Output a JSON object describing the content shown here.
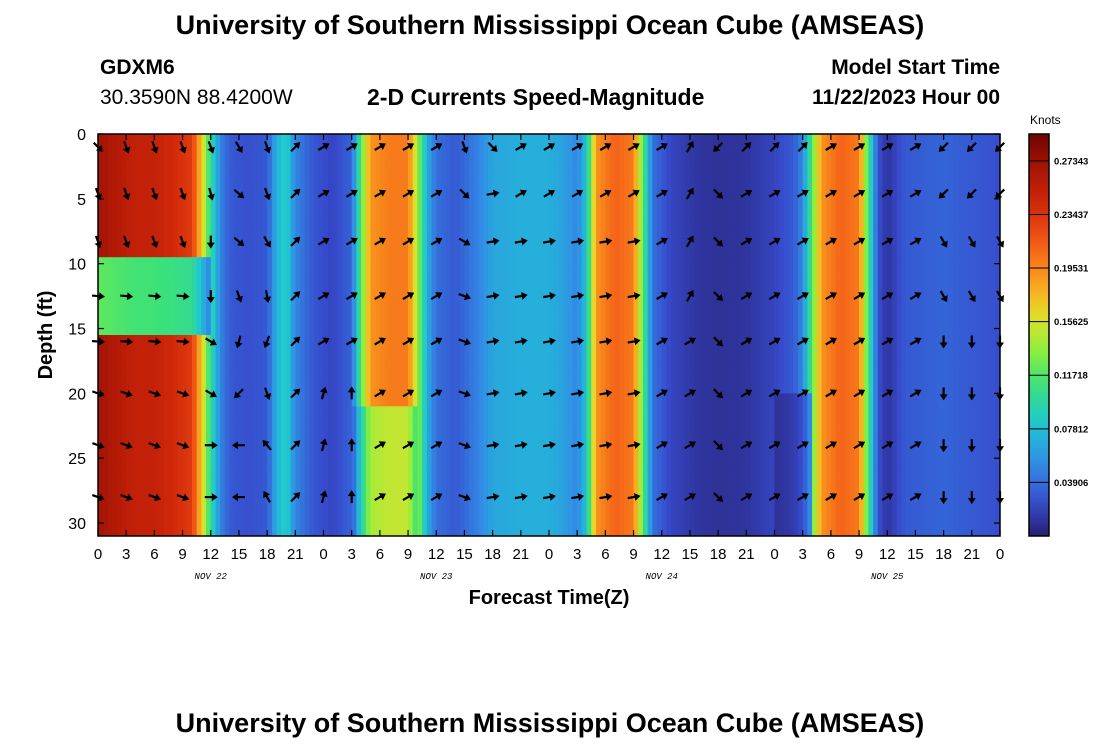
{
  "header": {
    "title": "University of Southern Mississippi Ocean Cube (AMSEAS)",
    "station": "GDXM6",
    "coords": "30.3590N  88.4200W",
    "subtitle": "2-D Currents Speed-Magnitude",
    "model_start_label": "Model Start Time",
    "model_start_value": "11/22/2023 Hour 00"
  },
  "footer": {
    "title": "University of Southern Mississippi Ocean Cube (AMSEAS)"
  },
  "chart_data": {
    "type": "heatmap",
    "xlabel": "Forecast Time(Z)",
    "ylabel": "Depth (ft)",
    "xlim": [
      0,
      96
    ],
    "ylim": [
      0,
      31
    ],
    "x_ticks": [
      0,
      3,
      6,
      9,
      12,
      15,
      18,
      21,
      24,
      27,
      30,
      33,
      36,
      39,
      42,
      45,
      48,
      51,
      54,
      57,
      60,
      63,
      66,
      69,
      72,
      75,
      78,
      81,
      84,
      87,
      90,
      93,
      96
    ],
    "x_tick_labels": [
      "0",
      "3",
      "6",
      "9",
      "12",
      "15",
      "18",
      "21",
      "0",
      "3",
      "6",
      "9",
      "12",
      "15",
      "18",
      "21",
      "0",
      "3",
      "6",
      "9",
      "12",
      "15",
      "18",
      "21",
      "0",
      "3",
      "6",
      "9",
      "12",
      "15",
      "18",
      "21",
      "0"
    ],
    "y_ticks": [
      0,
      5,
      10,
      15,
      20,
      25,
      30
    ],
    "y_tick_labels": [
      "0",
      "5",
      "10",
      "15",
      "20",
      "25",
      "30"
    ],
    "day_labels": [
      {
        "label": "NOV 22",
        "hour": 12
      },
      {
        "label": "NOV 23",
        "hour": 36
      },
      {
        "label": "NOV 24",
        "hour": 60
      },
      {
        "label": "NOV 25",
        "hour": 84
      }
    ],
    "colorbar": {
      "title": "Knots",
      "min": 0.0,
      "max": 0.293,
      "ticks": [
        0.27343,
        0.23437,
        0.19531,
        0.15625,
        0.11718,
        0.07812,
        0.03906
      ],
      "tick_labels": [
        "0.27343",
        "0.23437",
        "0.19531",
        "0.15625",
        "0.11718",
        "0.07812",
        "0.03906"
      ]
    },
    "depths": [
      1.0,
      4.6,
      8.3,
      12.5,
      16.0,
      20.0,
      24.0,
      28.0
    ],
    "speed_by_hour": [
      {
        "h": 0,
        "v": 0.27
      },
      {
        "h": 2,
        "v": 0.26
      },
      {
        "h": 4,
        "v": 0.25
      },
      {
        "h": 6,
        "v": 0.25
      },
      {
        "h": 8,
        "v": 0.24
      },
      {
        "h": 10,
        "v": 0.23
      },
      {
        "h": 11,
        "v": 0.17
      },
      {
        "h": 12,
        "v": 0.1
      },
      {
        "h": 13,
        "v": 0.05
      },
      {
        "h": 14,
        "v": 0.03
      },
      {
        "h": 16,
        "v": 0.025
      },
      {
        "h": 18,
        "v": 0.03
      },
      {
        "h": 19,
        "v": 0.07
      },
      {
        "h": 20,
        "v": 0.09
      },
      {
        "h": 21,
        "v": 0.05
      },
      {
        "h": 23,
        "v": 0.028
      },
      {
        "h": 25,
        "v": 0.02
      },
      {
        "h": 27,
        "v": 0.035
      },
      {
        "h": 28,
        "v": 0.12
      },
      {
        "h": 29,
        "v": 0.19
      },
      {
        "h": 31,
        "v": 0.2
      },
      {
        "h": 33,
        "v": 0.2
      },
      {
        "h": 34,
        "v": 0.14
      },
      {
        "h": 35,
        "v": 0.07
      },
      {
        "h": 36,
        "v": 0.04
      },
      {
        "h": 38,
        "v": 0.03
      },
      {
        "h": 40,
        "v": 0.045
      },
      {
        "h": 42,
        "v": 0.065
      },
      {
        "h": 45,
        "v": 0.07
      },
      {
        "h": 48,
        "v": 0.07
      },
      {
        "h": 50,
        "v": 0.06
      },
      {
        "h": 51,
        "v": 0.05
      },
      {
        "h": 52,
        "v": 0.08
      },
      {
        "h": 53,
        "v": 0.19
      },
      {
        "h": 55,
        "v": 0.21
      },
      {
        "h": 57,
        "v": 0.2
      },
      {
        "h": 58,
        "v": 0.12
      },
      {
        "h": 59,
        "v": 0.04
      },
      {
        "h": 61,
        "v": 0.02
      },
      {
        "h": 64,
        "v": 0.012
      },
      {
        "h": 66,
        "v": 0.01
      },
      {
        "h": 69,
        "v": 0.012
      },
      {
        "h": 72,
        "v": 0.02
      },
      {
        "h": 74,
        "v": 0.03
      },
      {
        "h": 75,
        "v": 0.05
      },
      {
        "h": 76,
        "v": 0.12
      },
      {
        "h": 77,
        "v": 0.19
      },
      {
        "h": 79,
        "v": 0.21
      },
      {
        "h": 81,
        "v": 0.2
      },
      {
        "h": 82,
        "v": 0.11
      },
      {
        "h": 83,
        "v": 0.025
      },
      {
        "h": 84,
        "v": 0.012
      },
      {
        "h": 86,
        "v": 0.03
      },
      {
        "h": 90,
        "v": 0.035
      },
      {
        "h": 93,
        "v": 0.03
      },
      {
        "h": 96,
        "v": 0.025
      }
    ],
    "vectors": [
      {
        "hour": 0,
        "directions_deg": [
          135,
          160,
          160,
          95,
          95,
          110,
          110,
          110
        ]
      },
      {
        "hour": 3,
        "directions_deg": [
          160,
          160,
          160,
          95,
          95,
          110,
          110,
          110
        ]
      },
      {
        "hour": 6,
        "directions_deg": [
          160,
          160,
          160,
          95,
          95,
          110,
          110,
          110
        ]
      },
      {
        "hour": 9,
        "directions_deg": [
          160,
          160,
          160,
          95,
          95,
          110,
          110,
          110
        ]
      },
      {
        "hour": 12,
        "directions_deg": [
          160,
          165,
          180,
          180,
          120,
          120,
          90,
          90
        ]
      },
      {
        "hour": 15,
        "directions_deg": [
          150,
          130,
          130,
          160,
          195,
          225,
          270,
          270
        ]
      },
      {
        "hour": 18,
        "directions_deg": [
          160,
          160,
          150,
          170,
          200,
          160,
          320,
          330
        ]
      },
      {
        "hour": 21,
        "directions_deg": [
          45,
          45,
          45,
          45,
          45,
          45,
          45,
          45
        ]
      },
      {
        "hour": 24,
        "directions_deg": [
          60,
          60,
          60,
          60,
          60,
          15,
          15,
          15
        ]
      },
      {
        "hour": 27,
        "directions_deg": [
          60,
          60,
          60,
          60,
          60,
          0,
          0,
          0
        ]
      },
      {
        "hour": 30,
        "directions_deg": [
          60,
          60,
          60,
          60,
          60,
          60,
          60,
          60
        ]
      },
      {
        "hour": 33,
        "directions_deg": [
          60,
          60,
          60,
          60,
          60,
          60,
          60,
          60
        ]
      },
      {
        "hour": 36,
        "directions_deg": [
          60,
          60,
          60,
          60,
          60,
          60,
          60,
          60
        ]
      },
      {
        "hour": 39,
        "directions_deg": [
          160,
          135,
          120,
          110,
          110,
          110,
          110,
          110
        ]
      },
      {
        "hour": 42,
        "directions_deg": [
          135,
          80,
          80,
          80,
          80,
          80,
          80,
          80
        ]
      },
      {
        "hour": 45,
        "directions_deg": [
          60,
          60,
          80,
          80,
          80,
          80,
          80,
          80
        ]
      },
      {
        "hour": 48,
        "directions_deg": [
          60,
          60,
          80,
          80,
          80,
          80,
          80,
          80
        ]
      },
      {
        "hour": 51,
        "directions_deg": [
          60,
          60,
          80,
          80,
          80,
          80,
          80,
          80
        ]
      },
      {
        "hour": 54,
        "directions_deg": [
          60,
          60,
          80,
          80,
          80,
          80,
          80,
          80
        ]
      },
      {
        "hour": 57,
        "directions_deg": [
          60,
          60,
          80,
          80,
          80,
          80,
          80,
          80
        ]
      },
      {
        "hour": 60,
        "directions_deg": [
          60,
          60,
          60,
          60,
          60,
          60,
          60,
          60
        ]
      },
      {
        "hour": 63,
        "directions_deg": [
          30,
          30,
          30,
          30,
          60,
          60,
          60,
          60
        ]
      },
      {
        "hour": 66,
        "directions_deg": [
          225,
          135,
          135,
          135,
          135,
          135,
          135,
          135
        ]
      },
      {
        "hour": 69,
        "directions_deg": [
          45,
          60,
          60,
          60,
          60,
          60,
          60,
          60
        ]
      },
      {
        "hour": 72,
        "directions_deg": [
          45,
          60,
          60,
          60,
          60,
          60,
          60,
          60
        ]
      },
      {
        "hour": 75,
        "directions_deg": [
          45,
          60,
          60,
          60,
          60,
          60,
          60,
          60
        ]
      },
      {
        "hour": 78,
        "directions_deg": [
          60,
          60,
          60,
          60,
          60,
          60,
          60,
          60
        ]
      },
      {
        "hour": 81,
        "directions_deg": [
          60,
          60,
          60,
          60,
          60,
          60,
          60,
          60
        ]
      },
      {
        "hour": 84,
        "directions_deg": [
          60,
          60,
          60,
          60,
          60,
          60,
          60,
          60
        ]
      },
      {
        "hour": 87,
        "directions_deg": [
          60,
          60,
          60,
          60,
          60,
          60,
          60,
          60
        ]
      },
      {
        "hour": 90,
        "directions_deg": [
          225,
          225,
          150,
          150,
          180,
          180,
          180,
          180
        ]
      },
      {
        "hour": 93,
        "directions_deg": [
          225,
          225,
          150,
          150,
          180,
          180,
          180,
          180
        ]
      },
      {
        "hour": 96,
        "directions_deg": [
          225,
          225,
          150,
          150,
          180,
          180,
          180,
          180
        ]
      }
    ]
  }
}
